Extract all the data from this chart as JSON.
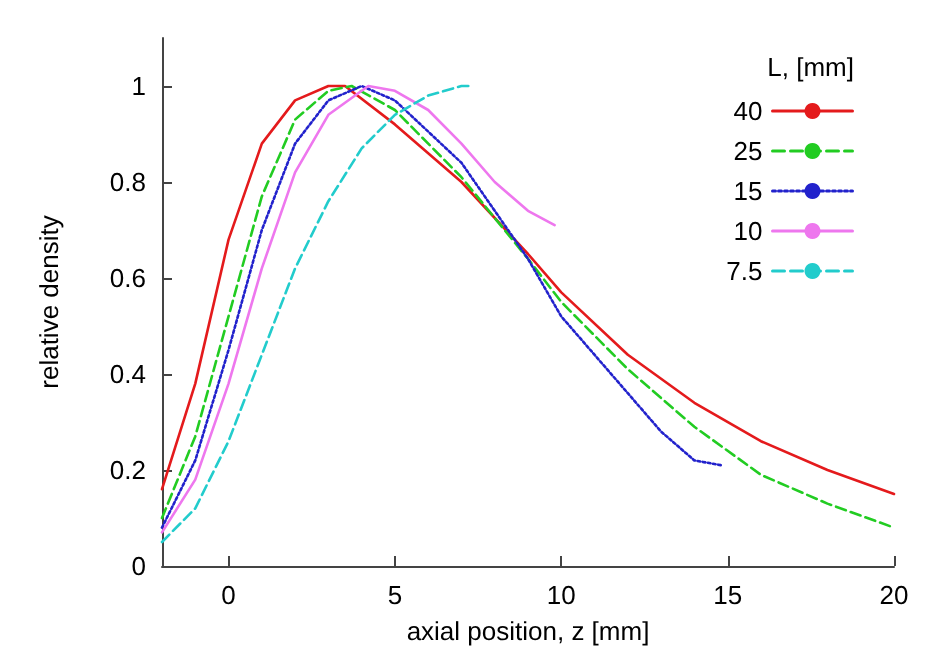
{
  "chart_data": {
    "type": "line",
    "xlabel": "axial position, z [mm]",
    "ylabel": "relative density",
    "legend_title": "L, [mm]",
    "legend": "top right",
    "grid": false,
    "marker": "none",
    "xlim": [
      -2,
      20
    ],
    "xticks": [
      0,
      5,
      10,
      15,
      20
    ],
    "ylim": [
      0,
      1.1
    ],
    "yticks": [
      0,
      0.2,
      0.4,
      0.6,
      0.8,
      1
    ],
    "series": [
      {
        "name": "40",
        "color": "#e41a1c",
        "line_style": "solid",
        "x": [
          -2,
          -1,
          0,
          1,
          2,
          3,
          3.5,
          5,
          7,
          9,
          10,
          12,
          14,
          16,
          18,
          20
        ],
        "values": [
          0.16,
          0.38,
          0.68,
          0.88,
          0.97,
          1.0,
          1.0,
          0.92,
          0.8,
          0.65,
          0.57,
          0.44,
          0.34,
          0.26,
          0.2,
          0.15
        ]
      },
      {
        "name": "25",
        "color": "#22cc22",
        "line_style": "dashed",
        "x": [
          -2,
          -1,
          0,
          1,
          2,
          3,
          3.7,
          5,
          7,
          9,
          10,
          12,
          14,
          16,
          18,
          20
        ],
        "values": [
          0.1,
          0.27,
          0.52,
          0.77,
          0.93,
          0.99,
          1.0,
          0.95,
          0.81,
          0.64,
          0.55,
          0.41,
          0.29,
          0.19,
          0.13,
          0.08
        ]
      },
      {
        "name": "15",
        "color": "#2222cc",
        "line_style": "dotted",
        "x": [
          -2,
          -1,
          0,
          1,
          2,
          3,
          4,
          5,
          7,
          9,
          10,
          12,
          13,
          14,
          14.8
        ],
        "values": [
          0.08,
          0.22,
          0.45,
          0.7,
          0.88,
          0.97,
          1.0,
          0.97,
          0.84,
          0.64,
          0.52,
          0.36,
          0.28,
          0.22,
          0.21
        ]
      },
      {
        "name": "10",
        "color": "#ee77ee",
        "line_style": "solid",
        "x": [
          -2,
          -1,
          0,
          1,
          2,
          3,
          4.2,
          5,
          6,
          7,
          8,
          9,
          9.8
        ],
        "values": [
          0.07,
          0.18,
          0.38,
          0.62,
          0.82,
          0.94,
          1.0,
          0.99,
          0.95,
          0.88,
          0.8,
          0.74,
          0.71
        ]
      },
      {
        "name": "7.5",
        "color": "#22cccc",
        "line_style": "dashed",
        "x": [
          -2,
          -1,
          0,
          1,
          2,
          3,
          4,
          5,
          6,
          7,
          7.3
        ],
        "values": [
          0.05,
          0.12,
          0.26,
          0.44,
          0.62,
          0.76,
          0.87,
          0.94,
          0.98,
          1.0,
          1.0
        ]
      }
    ]
  }
}
